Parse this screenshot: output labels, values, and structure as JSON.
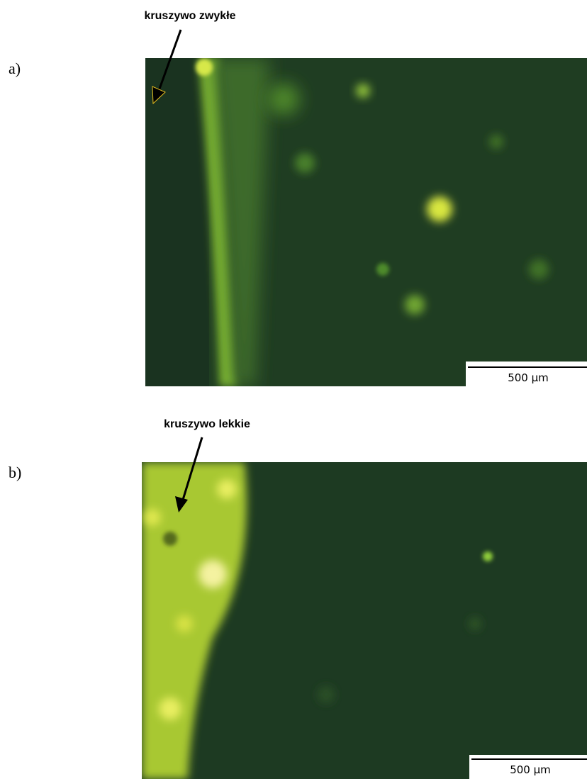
{
  "panels": [
    {
      "label": "a)",
      "annotation": "kruszywo zwykłe",
      "scale_bar": "500 μm"
    },
    {
      "label": "b)",
      "annotation": "kruszywo lekkie",
      "scale_bar": "500 μm"
    }
  ]
}
